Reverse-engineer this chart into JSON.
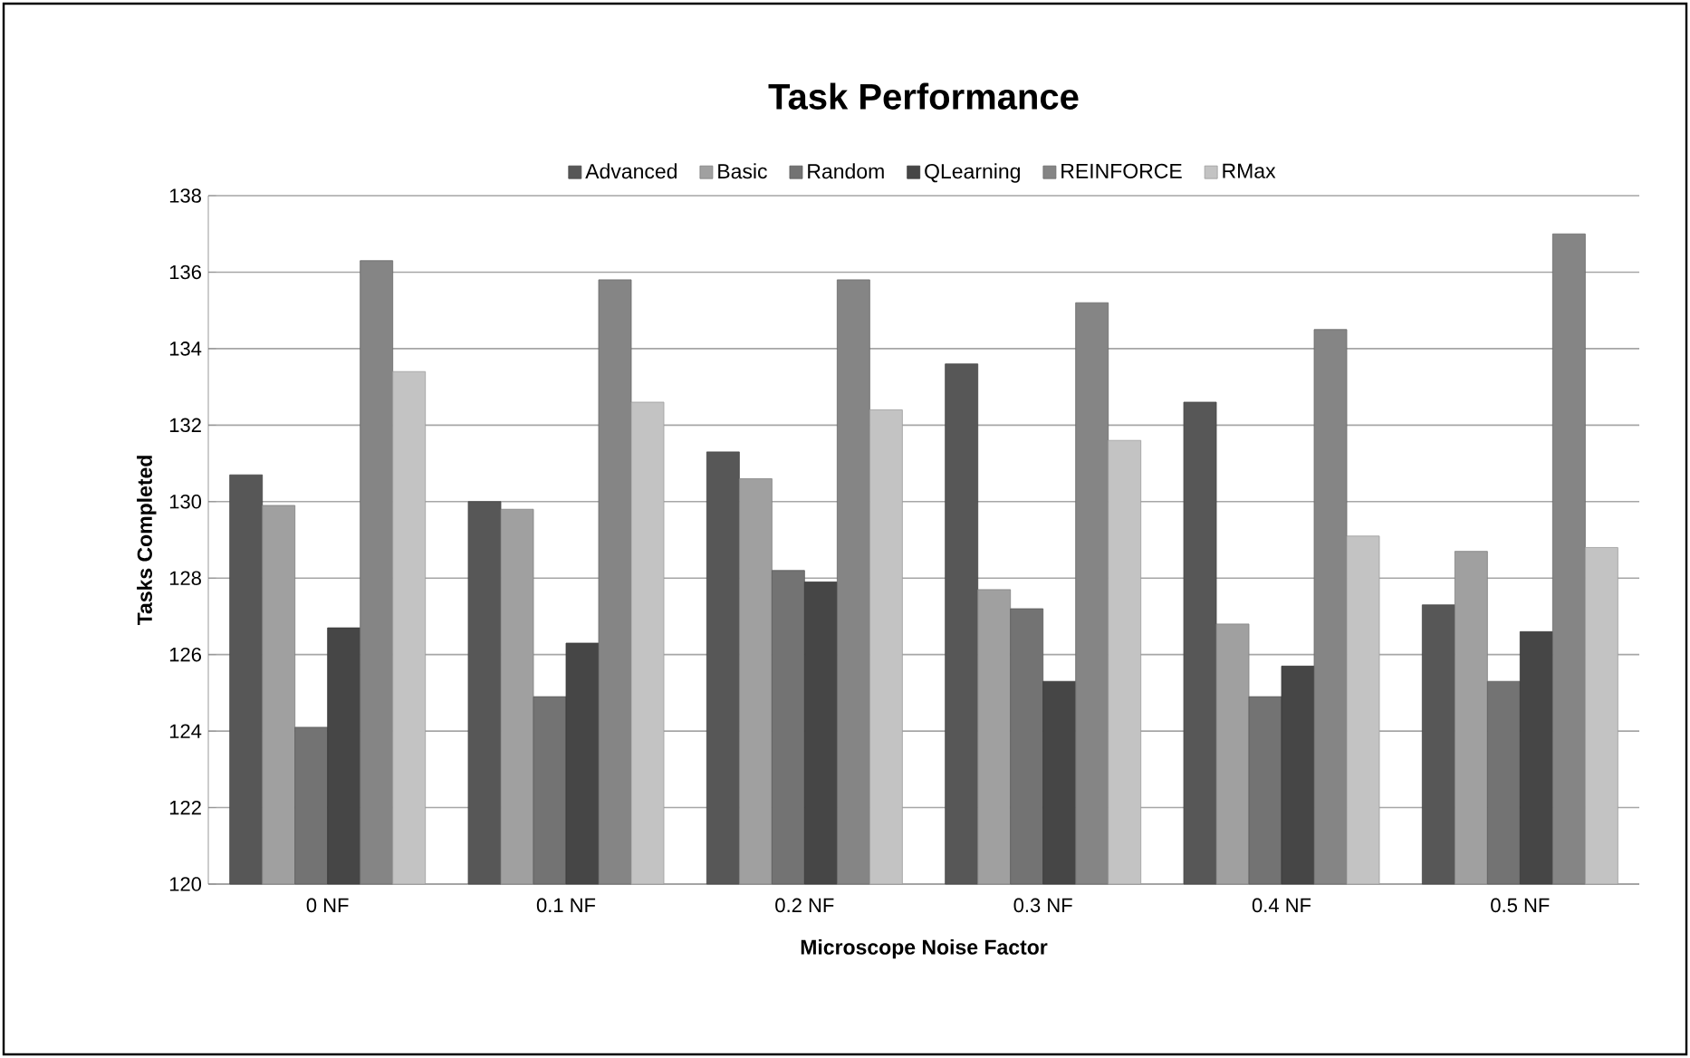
{
  "chart_data": {
    "type": "bar",
    "title": "Task Performance",
    "xlabel": "Microscope Noise Factor",
    "ylabel": "Tasks Completed",
    "categories": [
      "0 NF",
      "0.1 NF",
      "0.2 NF",
      "0.3 NF",
      "0.4 NF",
      "0.5 NF"
    ],
    "series": [
      {
        "name": "Advanced",
        "color": "#575757",
        "values": [
          130.7,
          130.0,
          131.3,
          133.6,
          132.6,
          127.3
        ]
      },
      {
        "name": "Basic",
        "color": "#a0a0a0",
        "values": [
          129.9,
          129.8,
          130.6,
          127.7,
          126.8,
          128.7
        ]
      },
      {
        "name": "Random",
        "color": "#737373",
        "values": [
          124.1,
          124.9,
          128.2,
          127.2,
          124.9,
          125.3
        ]
      },
      {
        "name": "QLearning",
        "color": "#464646",
        "values": [
          126.7,
          126.3,
          127.9,
          125.3,
          125.7,
          126.6
        ]
      },
      {
        "name": "REINFORCE",
        "color": "#858585",
        "values": [
          136.3,
          135.8,
          135.8,
          135.2,
          134.5,
          137.0
        ]
      },
      {
        "name": "RMax",
        "color": "#c3c3c3",
        "values": [
          133.4,
          132.6,
          132.4,
          131.6,
          129.1,
          128.8
        ]
      }
    ],
    "ylim": [
      120,
      138
    ],
    "yticks": [
      120,
      122,
      124,
      126,
      128,
      130,
      132,
      134,
      136,
      138
    ],
    "grid": "y",
    "legend": "top"
  }
}
